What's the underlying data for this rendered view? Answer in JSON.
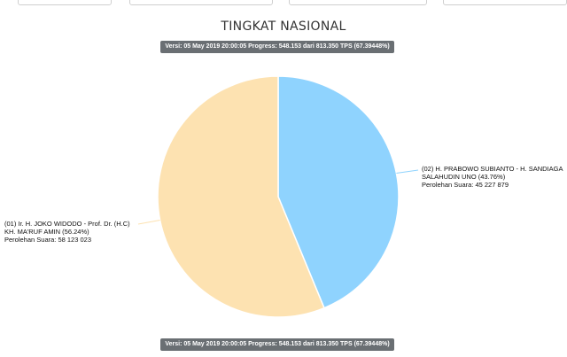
{
  "title": "TINGKAT NASIONAL",
  "version_badge": "Versi: 05 May 2019 20:00:05 Progress: 548.153 dari 813.350 TPS (67.39448%)",
  "colors": {
    "slice_01": "#fde2b1",
    "slice_02": "#8fd3fe",
    "badge_bg": "#6a6f73"
  },
  "chart_data": {
    "type": "pie",
    "title": "TINGKAT NASIONAL",
    "slices": [
      {
        "id": "02",
        "label_lines": [
          "(02) H. PRABOWO SUBIANTO - H. SANDIAGA",
          "SALAHUDIN UNO (43.76%)",
          "Perolehan Suara: 45 227 879"
        ],
        "percent": 43.76,
        "votes": 45227879,
        "color": "#8fd3fe"
      },
      {
        "id": "01",
        "label_lines": [
          "(01) Ir. H. JOKO WIDODO - Prof. Dr. (H.C)",
          "KH. MA'RUF AMIN (56.24%)",
          "Perolehan Suara: 58 123 023"
        ],
        "percent": 56.24,
        "votes": 58123023,
        "color": "#fde2b1"
      }
    ]
  }
}
